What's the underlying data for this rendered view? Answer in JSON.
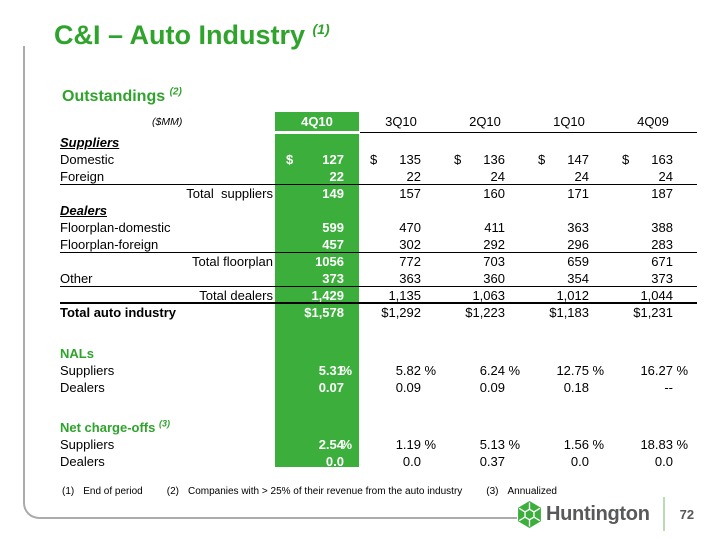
{
  "colors": {
    "accent_green": "#2FA32C",
    "fill_green": "#3CAE3C",
    "border_gray": "#ABABAB",
    "logo_gray": "#58595B",
    "separator_green": "#BCDCB0"
  },
  "slide": {
    "title": "C&I – Auto Industry ",
    "title_sup": "(1)",
    "section_label": "Outstandings ",
    "section_sup": "(2)",
    "logo_text": "Huntington",
    "page_number": "72"
  },
  "table": {
    "unit_label": "($MM)",
    "columns": [
      "4Q10",
      "3Q10",
      "2Q10",
      "1Q10",
      "4Q09"
    ],
    "rows": [
      {
        "type": "group",
        "label": "Suppliers"
      },
      {
        "type": "data",
        "label": "Domestic",
        "dollar": true,
        "values": [
          "127",
          "135",
          "136",
          "147",
          "163"
        ]
      },
      {
        "type": "data",
        "label": "Foreign",
        "values": [
          "22",
          "22",
          "24",
          "24",
          "24"
        ]
      },
      {
        "type": "total",
        "label": "Total  suppliers",
        "values": [
          "149",
          "157",
          "160",
          "171",
          "187"
        ]
      },
      {
        "type": "group",
        "label": "Dealers"
      },
      {
        "type": "data",
        "label": "Floorplan-domestic",
        "values": [
          "599",
          "470",
          "411",
          "363",
          "388"
        ]
      },
      {
        "type": "data",
        "label": "Floorplan-foreign",
        "values": [
          "457",
          "302",
          "292",
          "296",
          "283"
        ]
      },
      {
        "type": "total",
        "label": "Total floorplan",
        "values": [
          "1056",
          "772",
          "703",
          "659",
          "671"
        ]
      },
      {
        "type": "data",
        "label": "Other",
        "values": [
          "373",
          "363",
          "360",
          "354",
          "373"
        ]
      },
      {
        "type": "total",
        "label": "Total dealers",
        "values": [
          "1,429",
          "1,135",
          "1,063",
          "1,012",
          "1,044"
        ]
      },
      {
        "type": "grand",
        "label": "Total auto industry",
        "values": [
          "$1,578",
          "$1,292",
          "$1,223",
          "$1,183",
          "$1,231"
        ]
      },
      {
        "type": "gap",
        "h": 24
      },
      {
        "type": "section",
        "label": "NALs"
      },
      {
        "type": "data",
        "label": "Suppliers",
        "values": [
          "5.31%",
          "5.82%",
          "6.24%",
          "12.75%",
          "16.27%"
        ]
      },
      {
        "type": "data",
        "label": "Dealers",
        "values": [
          "0.07",
          "0.09",
          "0.09",
          "0.18",
          "--"
        ]
      },
      {
        "type": "gap",
        "h": 23
      },
      {
        "type": "section",
        "label": "Net charge-offs ",
        "sup": "(3)"
      },
      {
        "type": "data",
        "label": "Suppliers",
        "values": [
          "2.54%",
          "1.19%",
          "5.13%",
          "1.56%",
          "18.83%"
        ]
      },
      {
        "type": "data",
        "label": "Dealers",
        "values": [
          "0.0",
          "0.0",
          "0.37",
          "0.0",
          "0.0"
        ]
      }
    ]
  },
  "footnotes": [
    {
      "num": "(1)",
      "text": "End of period"
    },
    {
      "num": "(2)",
      "text": "Companies with > 25% of their revenue from the auto industry"
    },
    {
      "num": "(3)",
      "text": "Annualized"
    }
  ]
}
